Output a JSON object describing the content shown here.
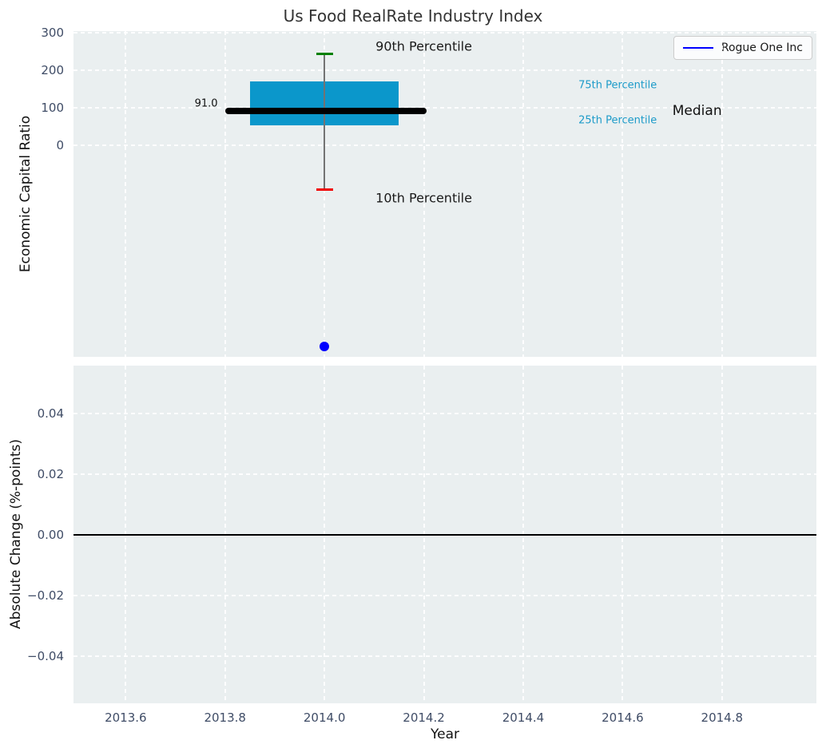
{
  "title": "Us Food RealRate Industry Index",
  "colors": {
    "axes_background": "#eaeff0",
    "grid": "#ffffff",
    "tick_text": "#3f4c66",
    "title_text": "#333333",
    "box_fill": "#0b97cb",
    "median_line": "#000000",
    "whisker": "#737373",
    "cap_90th": "#008000",
    "cap_10th": "#f00000",
    "company_point": "#0000ff",
    "percentile_text": "#1d9bc9",
    "zero_line": "#000000"
  },
  "chart_data": [
    {
      "type": "box",
      "title": "Us Food RealRate Industry Index",
      "ylabel": "Economic Capital Ratio",
      "xlim": [
        2013.495,
        2014.99
      ],
      "ylim": [
        -565,
        305
      ],
      "grid": "dashed-white, y-gridlines only at labeled ticks",
      "yticks": {
        "values": [
          300,
          200,
          100,
          0
        ],
        "labels": [
          "300",
          "200",
          "100",
          "0"
        ]
      },
      "xticks": {
        "values": [
          2013.6,
          2013.8,
          2014.0,
          2014.2,
          2014.4,
          2014.6,
          2014.8
        ],
        "labels": []
      },
      "box": {
        "x_center": 2014.0,
        "x_left": 2013.85,
        "x_right": 2014.15,
        "percentile_10": -119,
        "percentile_25": 53,
        "median": 91,
        "percentile_75": 170,
        "percentile_90": 245,
        "median_label": "91.0",
        "median_x_left": 2013.8,
        "median_x_right": 2014.205,
        "cap_x_left": 2013.983,
        "cap_x_right": 2014.017
      },
      "company_point": {
        "name": "Rogue One Inc",
        "x": 2014.0,
        "y": -537
      },
      "legend": {
        "label": "Rogue One Inc",
        "line_color": "#0000ff",
        "position": "upper right"
      },
      "annotations": [
        {
          "text": "90th Percentile",
          "x": 2014.2,
          "y": 264,
          "color": "#1a1a1a",
          "size": 16
        },
        {
          "text": "10th Percentile",
          "x": 2014.2,
          "y": -140,
          "color": "#1a1a1a",
          "size": 16
        },
        {
          "text": "75th Percentile",
          "x": 2014.59,
          "y": 160,
          "color": "#1d9bc9",
          "size": 13
        },
        {
          "text": "25th Percentile",
          "x": 2014.59,
          "y": 66,
          "color": "#1d9bc9",
          "size": 13
        },
        {
          "text": "Median",
          "x": 2014.75,
          "y": 91,
          "color": "#111111",
          "size": 17
        },
        {
          "text": "91.0",
          "x": 2013.762,
          "y": 111,
          "color": "#111111",
          "size": 13
        }
      ]
    },
    {
      "type": "line",
      "ylabel": "Absolute Change (%-points)",
      "xlabel": "Year",
      "xlim": [
        2013.495,
        2014.99
      ],
      "ylim": [
        -0.0555,
        0.0558
      ],
      "yticks": {
        "values": [
          0.04,
          0.02,
          0.0,
          -0.02,
          -0.04
        ],
        "labels": [
          "0.04",
          "0.02",
          "0.00",
          "−0.02",
          "−0.04"
        ]
      },
      "xticks": {
        "values": [
          2013.6,
          2013.8,
          2014.0,
          2014.2,
          2014.4,
          2014.6,
          2014.8
        ],
        "labels": [
          "2013.6",
          "2013.8",
          "2014.0",
          "2014.2",
          "2014.4",
          "2014.6",
          "2014.8"
        ]
      },
      "zero_line_y": 0.0,
      "series": []
    }
  ]
}
